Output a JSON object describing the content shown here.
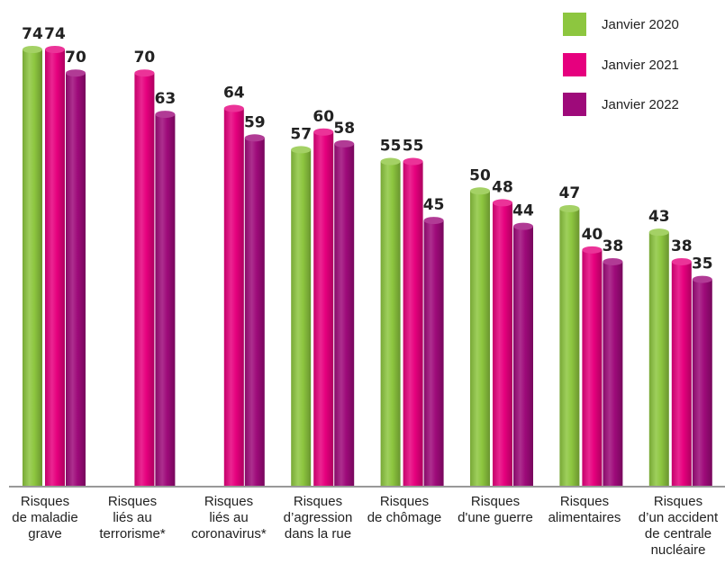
{
  "chart_data": {
    "type": "bar",
    "categories": [
      [
        "Risques",
        "de maladie",
        "grave"
      ],
      [
        "Risques",
        "liés au",
        "terrorisme*"
      ],
      [
        "Risques",
        "liés au",
        "coronavirus*"
      ],
      [
        "Risques",
        "d’agression",
        "dans la rue"
      ],
      [
        "Risques",
        "de chômage"
      ],
      [
        "Risques",
        "d'une guerre"
      ],
      [
        "Risques",
        "alimentaires"
      ],
      [
        "Risques",
        "d’un accident",
        "de centrale",
        "nucléaire"
      ]
    ],
    "series": [
      {
        "name": "Janvier 2020",
        "color": "#8dc63f",
        "values": [
          74,
          null,
          null,
          57,
          55,
          50,
          47,
          43
        ]
      },
      {
        "name": "Janvier 2021",
        "color": "#e6007e",
        "values": [
          74,
          70,
          64,
          60,
          55,
          48,
          40,
          38
        ]
      },
      {
        "name": "Janvier 2022",
        "color": "#9e0a7a",
        "values": [
          70,
          63,
          59,
          58,
          45,
          44,
          38,
          35
        ]
      }
    ],
    "ylim": [
      0,
      74
    ],
    "legend_position": "top-right",
    "grid": false,
    "title": "",
    "xlabel": "",
    "ylabel": ""
  }
}
